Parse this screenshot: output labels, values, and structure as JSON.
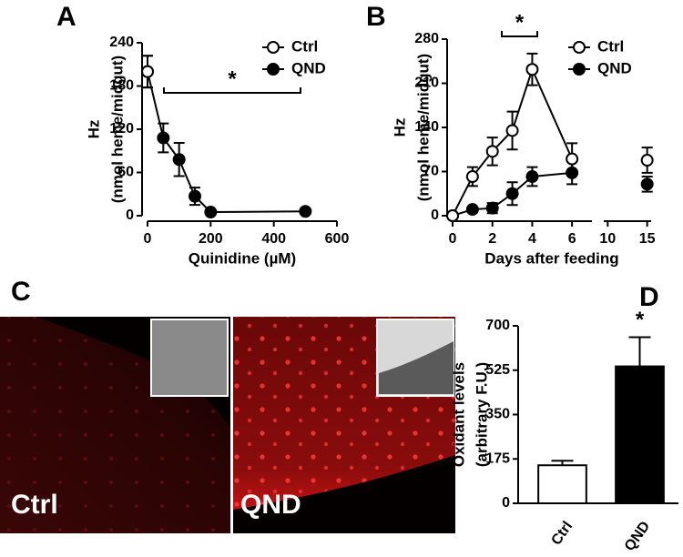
{
  "chart_data": [
    {
      "type": "line",
      "panel": "A",
      "x_label": "Quinidine (µM)",
      "y_label": [
        "Hz",
        "(nmol heme/midgut)"
      ],
      "xlim": [
        0,
        600
      ],
      "xticks": [
        0,
        200,
        400,
        600
      ],
      "ylim": [
        0,
        240
      ],
      "yticks": [
        0,
        60,
        120,
        180,
        240
      ],
      "annotation": "*",
      "series": [
        {
          "name": "Ctrl",
          "color": "#000000",
          "marker_fill": "#ffffff",
          "x": [
            0
          ],
          "values": [
            200
          ],
          "errors": [
            22
          ]
        },
        {
          "name": "QND",
          "color": "#000000",
          "marker_fill": "#000000",
          "x": [
            0,
            50,
            100,
            150,
            200,
            500
          ],
          "values": [
            200,
            108,
            78,
            27,
            5,
            6
          ],
          "errors": [
            22,
            20,
            23,
            12,
            3,
            2
          ]
        }
      ]
    },
    {
      "type": "line",
      "panel": "B",
      "x_label": "Days after feeding",
      "y_label": [
        "Hz",
        "(nmol heme/midgut)"
      ],
      "x_segments": [
        [
          0,
          7
        ],
        [
          9.5,
          15.5
        ]
      ],
      "xticks": [
        0,
        2,
        4,
        6,
        10,
        15
      ],
      "ylim": [
        0,
        280
      ],
      "yticks": [
        0,
        70,
        140,
        210,
        280
      ],
      "annotation": "*",
      "series": [
        {
          "name": "Ctrl",
          "color": "#000000",
          "marker_fill": "#ffffff",
          "x": [
            0,
            1,
            2,
            3,
            4,
            6,
            15
          ],
          "values": [
            0,
            62,
            102,
            135,
            232,
            90,
            88
          ],
          "errors": [
            0,
            15,
            22,
            30,
            25,
            25,
            20
          ]
        },
        {
          "name": "QND",
          "color": "#000000",
          "marker_fill": "#000000",
          "x": [
            0,
            1,
            2,
            3,
            4,
            6,
            15
          ],
          "values": [
            0,
            10,
            12,
            35,
            62,
            68,
            50
          ],
          "errors": [
            0,
            3,
            8,
            18,
            15,
            18,
            12
          ]
        }
      ]
    },
    {
      "type": "bar",
      "panel": "D",
      "y_label": [
        "Oxidant levels",
        "(arbitrary F.U.)"
      ],
      "categories": [
        "Ctrl",
        "QND"
      ],
      "values": [
        150,
        540
      ],
      "errors": [
        18,
        115
      ],
      "colors": [
        "#ffffff",
        "#000000"
      ],
      "ylim": [
        0,
        700
      ],
      "yticks": [
        0,
        175,
        350,
        525,
        700
      ],
      "annotation": "*"
    }
  ],
  "images": {
    "panel": "C",
    "labels": [
      "Ctrl",
      "QND"
    ]
  }
}
